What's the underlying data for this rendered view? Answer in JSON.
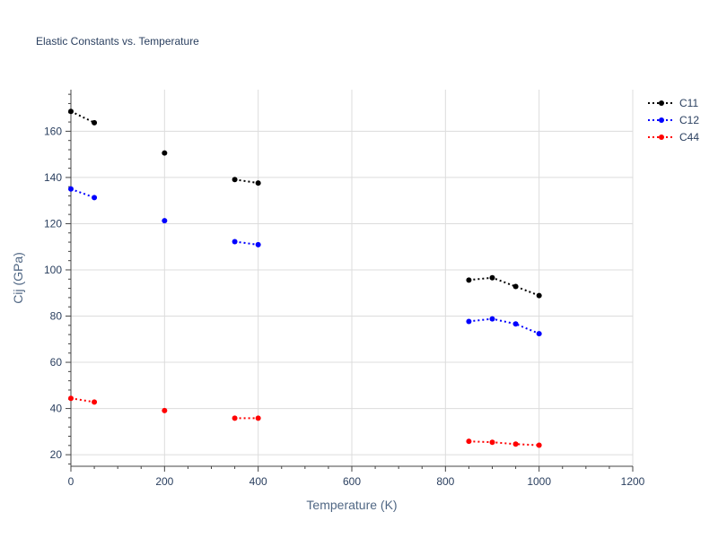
{
  "chart_data": {
    "type": "line",
    "title": "Elastic Constants vs. Temperature",
    "xlabel": "Temperature (K)",
    "ylabel": "Cij (GPa)",
    "xlim": [
      0,
      1200
    ],
    "ylim": [
      15,
      178
    ],
    "xticks": [
      0,
      200,
      400,
      600,
      800,
      1000,
      1200
    ],
    "yticks": [
      20,
      40,
      60,
      80,
      100,
      120,
      140,
      160
    ],
    "grid": true,
    "legend_position": "top-right",
    "line_style": "dotted",
    "series": [
      {
        "name": "C11",
        "color": "#000000",
        "points": [
          [
            0,
            168.6
          ],
          [
            50,
            163.7
          ],
          [
            200,
            150.6
          ],
          [
            350,
            139.1
          ],
          [
            400,
            137.6
          ],
          [
            850,
            95.6
          ],
          [
            900,
            96.6
          ],
          [
            950,
            92.8
          ],
          [
            1000,
            88.9
          ]
        ],
        "segments": [
          [
            0,
            1
          ],
          [
            3,
            4
          ],
          [
            5,
            6,
            7,
            8
          ]
        ]
      },
      {
        "name": "C12",
        "color": "#0000ff",
        "points": [
          [
            0,
            135.0
          ],
          [
            50,
            131.3
          ],
          [
            200,
            121.3
          ],
          [
            350,
            112.2
          ],
          [
            400,
            110.9
          ],
          [
            850,
            77.7
          ],
          [
            900,
            78.8
          ],
          [
            950,
            76.6
          ],
          [
            1000,
            72.4
          ]
        ],
        "segments": [
          [
            0,
            1
          ],
          [
            3,
            4
          ],
          [
            5,
            6,
            7,
            8
          ]
        ]
      },
      {
        "name": "C44",
        "color": "#ff0000",
        "points": [
          [
            0,
            44.4
          ],
          [
            50,
            42.8
          ],
          [
            200,
            39.1
          ],
          [
            350,
            35.8
          ],
          [
            400,
            35.8
          ],
          [
            850,
            25.8
          ],
          [
            900,
            25.4
          ],
          [
            950,
            24.6
          ],
          [
            1000,
            24.1
          ]
        ],
        "segments": [
          [
            0,
            1
          ],
          [
            3,
            4
          ],
          [
            5,
            6,
            7,
            8
          ]
        ]
      }
    ]
  }
}
